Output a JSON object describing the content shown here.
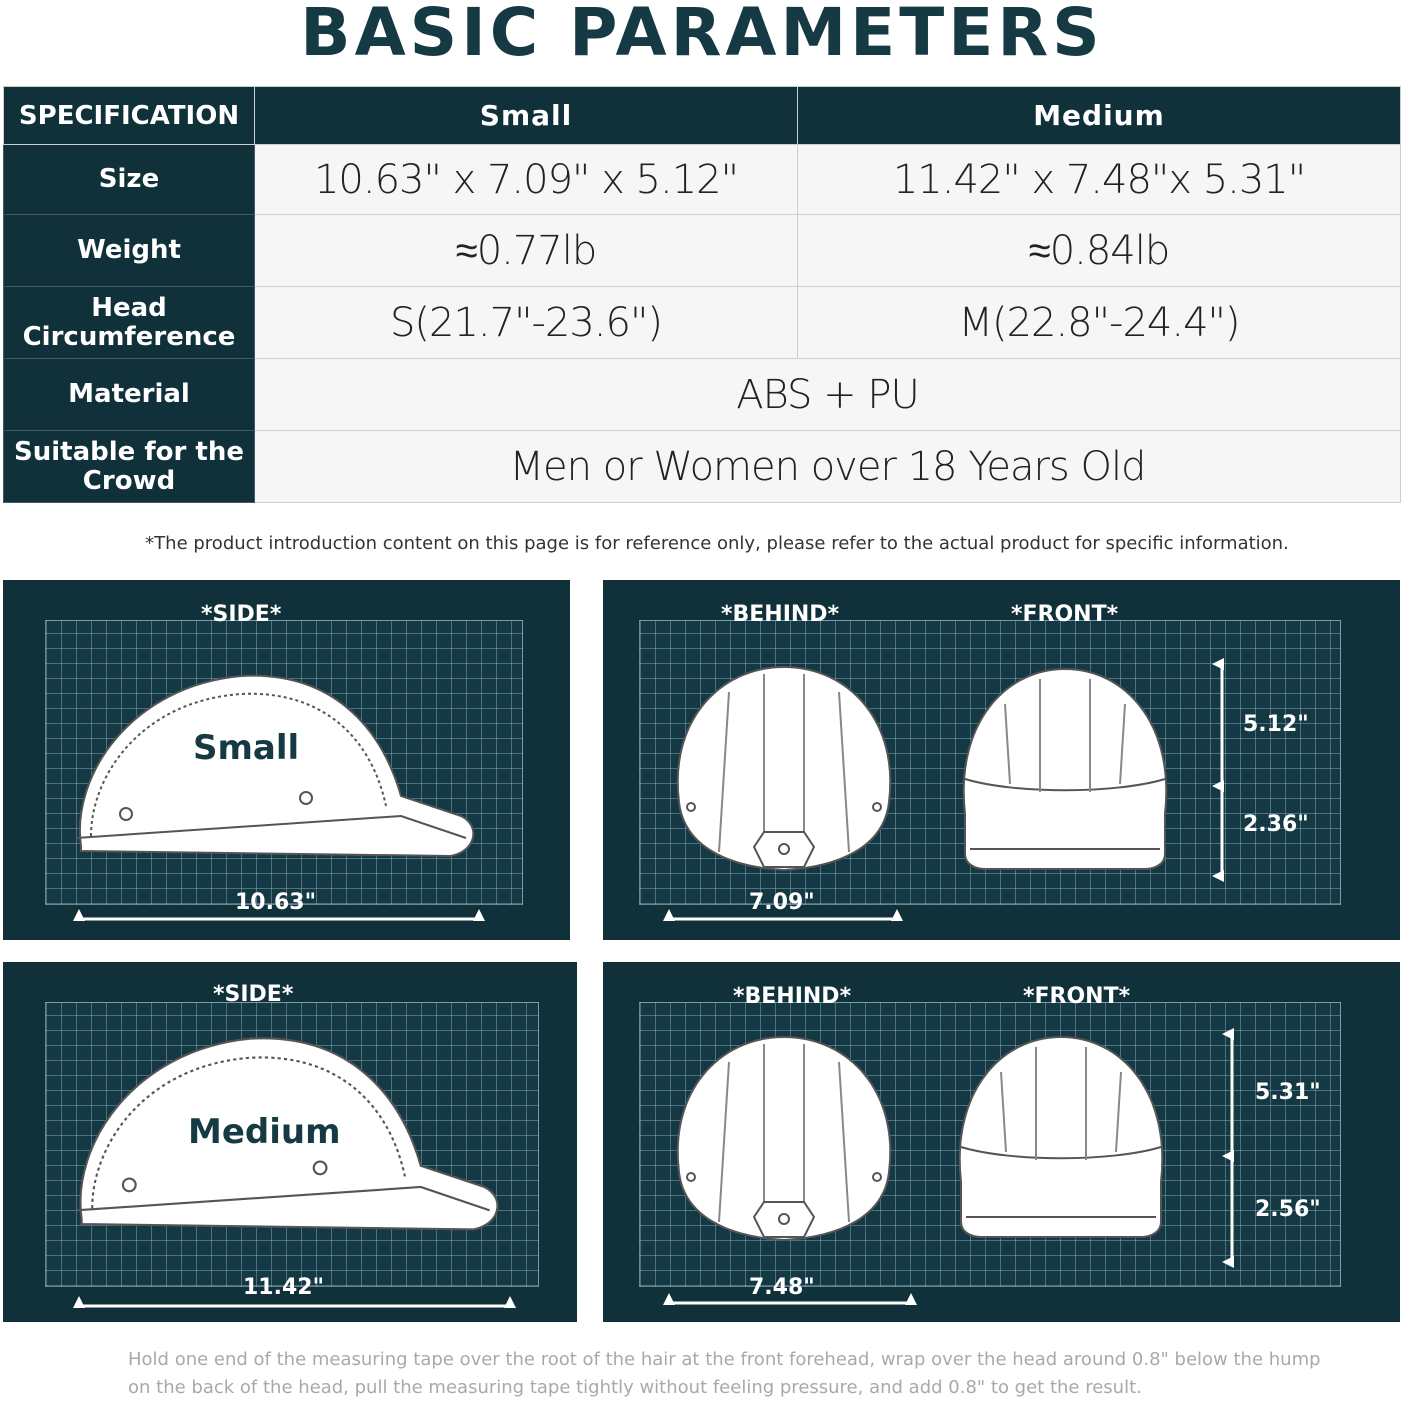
{
  "title": "BASIC PARAMETERS",
  "table": {
    "headers": [
      "SPECIFICATION",
      "Small",
      "Medium"
    ],
    "rows": [
      {
        "label": "Size",
        "small": "10.63\" x 7.09\" x 5.12\"",
        "medium": "11.42\" x 7.48\"x 5.31\""
      },
      {
        "label": "Weight",
        "small": "≈0.77lb",
        "medium": "≈0.84lb"
      },
      {
        "label": "Head Circumference",
        "small": "S(21.7\"-23.6\")",
        "medium": "M(22.8\"-24.4\")"
      },
      {
        "label": "Material",
        "value": "ABS + PU"
      },
      {
        "label": "Suitable for the Crowd",
        "value": "Men or Women over 18 Years Old"
      }
    ]
  },
  "note": "*The product introduction content on this page is for reference only, please refer to the actual product for specific information.",
  "diagrams": {
    "small": {
      "side_label": "*SIDE*",
      "size_name": "Small",
      "length": "10.63\"",
      "behind_label": "*BEHIND*",
      "front_label": "*FRONT*",
      "width": "7.09\"",
      "height_top": "5.12\"",
      "height_bottom": "2.36\""
    },
    "medium": {
      "side_label": "*SIDE*",
      "size_name": "Medium",
      "length": "11.42\"",
      "behind_label": "*BEHIND*",
      "front_label": "*FRONT*",
      "width": "7.48\"",
      "height_top": "5.31\"",
      "height_bottom": "2.56\""
    }
  },
  "footer": [
    "Hold one end of the measuring tape over the root of the hair at the front forehead, wrap over the head around 0.8\"  below the hump",
    "on the back of the head, pull the measuring tape tightly without feeling pressure, and add 0.8\"  to get the result."
  ],
  "colors": {
    "dark": "#10303a",
    "title": "#163a44"
  }
}
